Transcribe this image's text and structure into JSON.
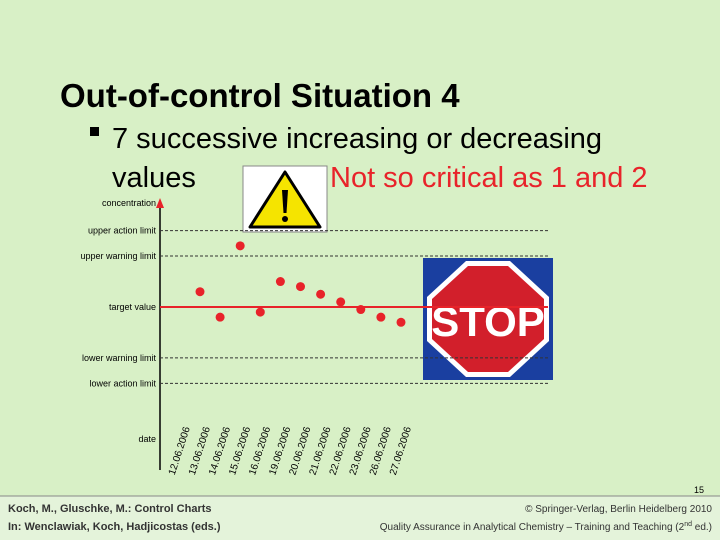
{
  "slide": {
    "title": "Out-of-control Situation 4",
    "bullet_line1": "7 successive increasing or decreasing",
    "bullet_line2": "values",
    "remark": "Not so critical as 1 and 2",
    "stop_sign": "STOP",
    "page_number": "15",
    "footer_left1": "Koch, M., Gluschke, M.: Control Charts",
    "footer_left2": "In: Wenclawiak, Koch, Hadjicostas (eds.)",
    "footer_right1": "© Springer-Verlag, Berlin Heidelberg 2010",
    "footer_right2": [
      "Quality Assurance in Analytical Chemistry – Training and Teaching (2",
      "nd",
      " ed.)"
    ]
  },
  "chart_data": {
    "type": "scatter",
    "y_label": "concentration",
    "x_label": "date",
    "color": "#e8232a",
    "categories": [
      "12.06.2006",
      "13.06.2006",
      "14.06.2006",
      "15.06.2006",
      "16.06.2006",
      "19.06.2006",
      "20.06.2006",
      "21.06.2006",
      "22.06.2006",
      "23.06.2006",
      "26.06.2006",
      "27.06.2006"
    ],
    "values": [
      0.6,
      -0.4,
      2.4,
      -0.2,
      1.0,
      0.8,
      0.5,
      0.2,
      -0.1,
      -0.4,
      -0.6,
      null
    ],
    "ylim": [
      -6.4,
      4.2
    ],
    "limits": [
      {
        "name": "upper action limit",
        "value": 3,
        "style": "dashed"
      },
      {
        "name": "upper warning limit",
        "value": 2,
        "style": "dashed"
      },
      {
        "name": "target value",
        "value": 0,
        "style": "solid"
      },
      {
        "name": "lower warning limit",
        "value": -2,
        "style": "dashed"
      },
      {
        "name": "lower action limit",
        "value": -3,
        "style": "dashed"
      }
    ]
  }
}
